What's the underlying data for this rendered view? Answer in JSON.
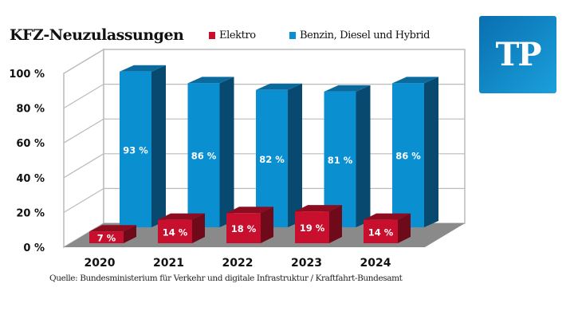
{
  "chart_data": {
    "type": "bar",
    "title": "KFZ-Neuzulassungen",
    "categories": [
      "2020",
      "2021",
      "2022",
      "2023",
      "2024"
    ],
    "series": [
      {
        "name": "Elektro",
        "values": [
          7,
          14,
          18,
          19,
          14
        ],
        "labels": [
          "7 %",
          "14 %",
          "18 %",
          "19 %",
          "14 %"
        ],
        "color": "#c8102e"
      },
      {
        "name": "Benzin, Diesel und Hybrid",
        "values": [
          93,
          86,
          82,
          81,
          86
        ],
        "labels": [
          "93 %",
          "86 %",
          "82 %",
          "81 %",
          "86 %"
        ],
        "color": "#0a8fd0"
      }
    ],
    "yticks": [
      "0 %",
      "20 %",
      "40 %",
      "60 %",
      "80 %",
      "100 %"
    ],
    "ylim": [
      0,
      100
    ],
    "grid": true,
    "style": "3d-bar",
    "legend_placement": "top"
  },
  "logo": {
    "text": "TP",
    "color": "#0a8fd0"
  },
  "source": "Quelle: Bundesministerium für Verkehr und digitale Infrastruktur / Kraftfahrt-Bundesamt"
}
